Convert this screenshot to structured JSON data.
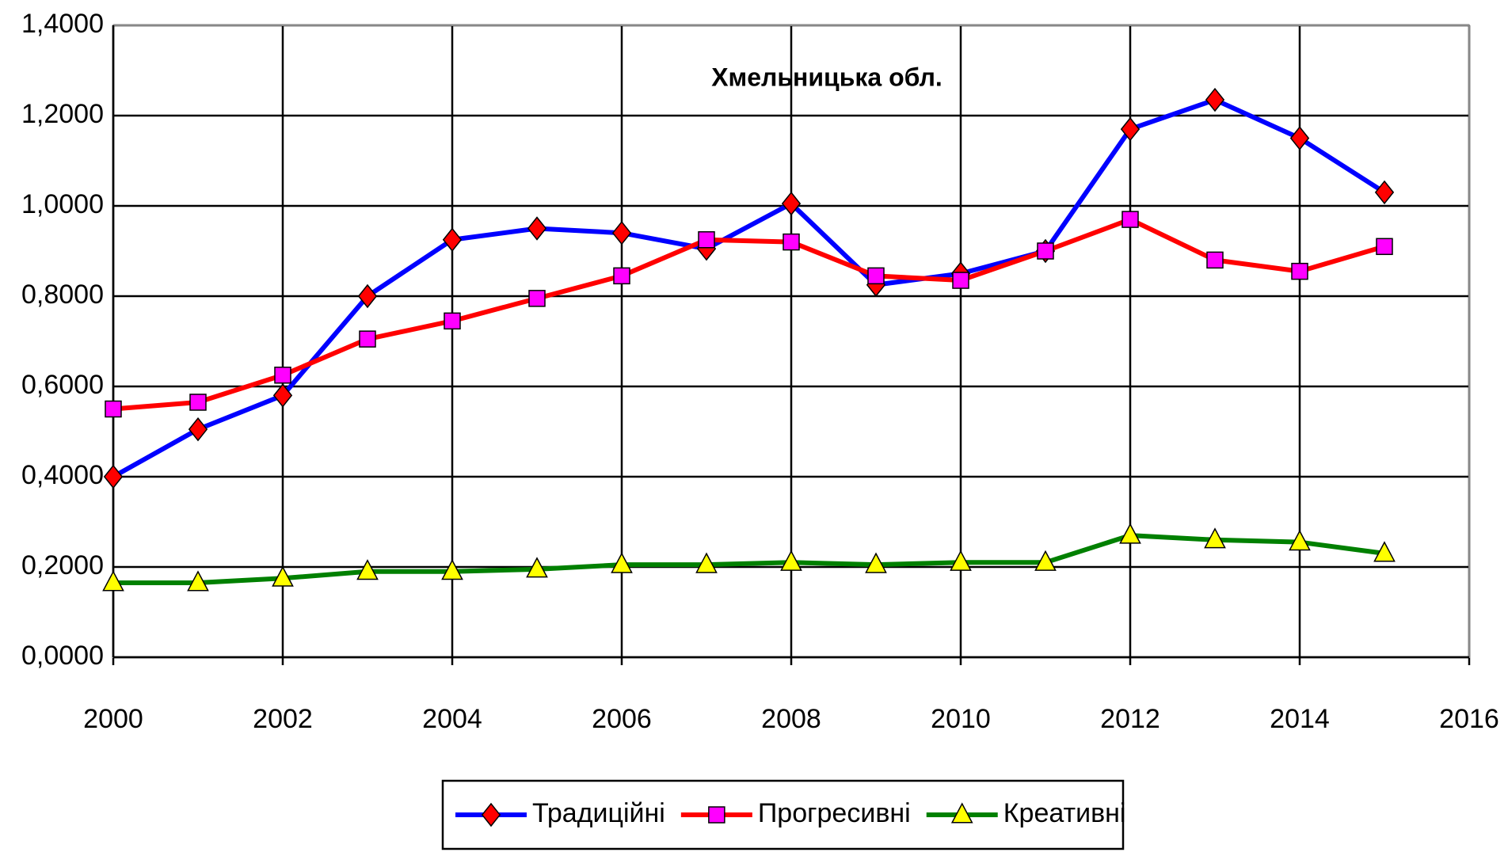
{
  "chart_data": {
    "type": "line",
    "title": "Хмельницька обл.",
    "x": [
      2000,
      2001,
      2002,
      2003,
      2004,
      2005,
      2006,
      2007,
      2008,
      2009,
      2010,
      2011,
      2012,
      2013,
      2014,
      2015
    ],
    "series": [
      {
        "name": "Традиційні",
        "color": "#0000ff",
        "marker": "diamond",
        "marker_color": "#ff0000",
        "values": [
          0.4,
          0.505,
          0.58,
          0.8,
          0.925,
          0.95,
          0.94,
          0.905,
          1.005,
          0.825,
          0.85,
          0.9,
          1.17,
          1.235,
          1.15,
          1.03
        ]
      },
      {
        "name": "Прогресивні",
        "color": "#ff0000",
        "marker": "square",
        "marker_color": "#ff00ff",
        "values": [
          0.55,
          0.565,
          0.625,
          0.705,
          0.745,
          0.795,
          0.845,
          0.925,
          0.92,
          0.845,
          0.835,
          0.9,
          0.97,
          0.88,
          0.855,
          0.91
        ]
      },
      {
        "name": "Креативні",
        "color": "#008000",
        "marker": "triangle",
        "marker_color": "#ffff00",
        "values": [
          0.165,
          0.165,
          0.175,
          0.19,
          0.19,
          0.195,
          0.205,
          0.205,
          0.21,
          0.205,
          0.21,
          0.21,
          0.27,
          0.26,
          0.255,
          0.23
        ]
      }
    ],
    "xlim": [
      2000,
      2016
    ],
    "xticks": [
      2000,
      2002,
      2004,
      2006,
      2008,
      2010,
      2012,
      2014,
      2016
    ],
    "ylim": [
      0,
      1.4
    ],
    "yticks": [
      {
        "value": 0,
        "label": "0,0000"
      },
      {
        "value": 0.2,
        "label": "0,2000"
      },
      {
        "value": 0.4,
        "label": "0,4000"
      },
      {
        "value": 0.6,
        "label": "0,6000"
      },
      {
        "value": 0.8,
        "label": "0,8000"
      },
      {
        "value": 1.0,
        "label": "1,0000"
      },
      {
        "value": 1.2,
        "label": "1,2000"
      },
      {
        "value": 1.4,
        "label": "1,4000"
      }
    ],
    "grid": true,
    "legend": "bottom"
  }
}
